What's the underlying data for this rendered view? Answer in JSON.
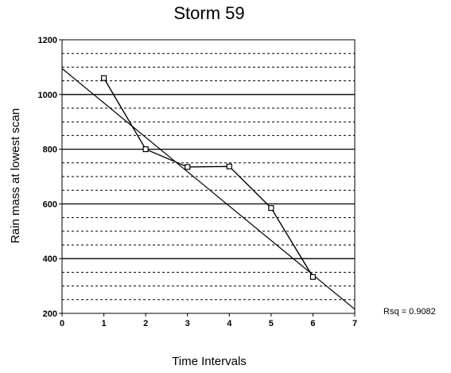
{
  "chart_data": {
    "type": "line",
    "title": "Storm 59",
    "xlabel": "Time Intervals",
    "ylabel": "Rain mass at lowest scan",
    "xlim": [
      0,
      7
    ],
    "ylim": [
      200,
      1200
    ],
    "x_ticks": [
      "0",
      "1",
      "2",
      "3",
      "4",
      "5",
      "6",
      "7"
    ],
    "y_ticks": [
      "200",
      "400",
      "600",
      "800",
      "1000",
      "1200"
    ],
    "grid": {
      "major_step": 200,
      "minor_step": 50,
      "minor_style": "dashed"
    },
    "series": [
      {
        "marker": "square",
        "x": [
          1,
          2,
          3,
          4,
          5,
          6
        ],
        "y": [
          1060,
          800,
          735,
          737,
          585,
          333
        ]
      }
    ],
    "trendline": {
      "x": [
        0,
        7
      ],
      "y": [
        1095,
        215
      ]
    },
    "annotations": [
      {
        "text": "Rsq = 0.9082"
      }
    ]
  }
}
